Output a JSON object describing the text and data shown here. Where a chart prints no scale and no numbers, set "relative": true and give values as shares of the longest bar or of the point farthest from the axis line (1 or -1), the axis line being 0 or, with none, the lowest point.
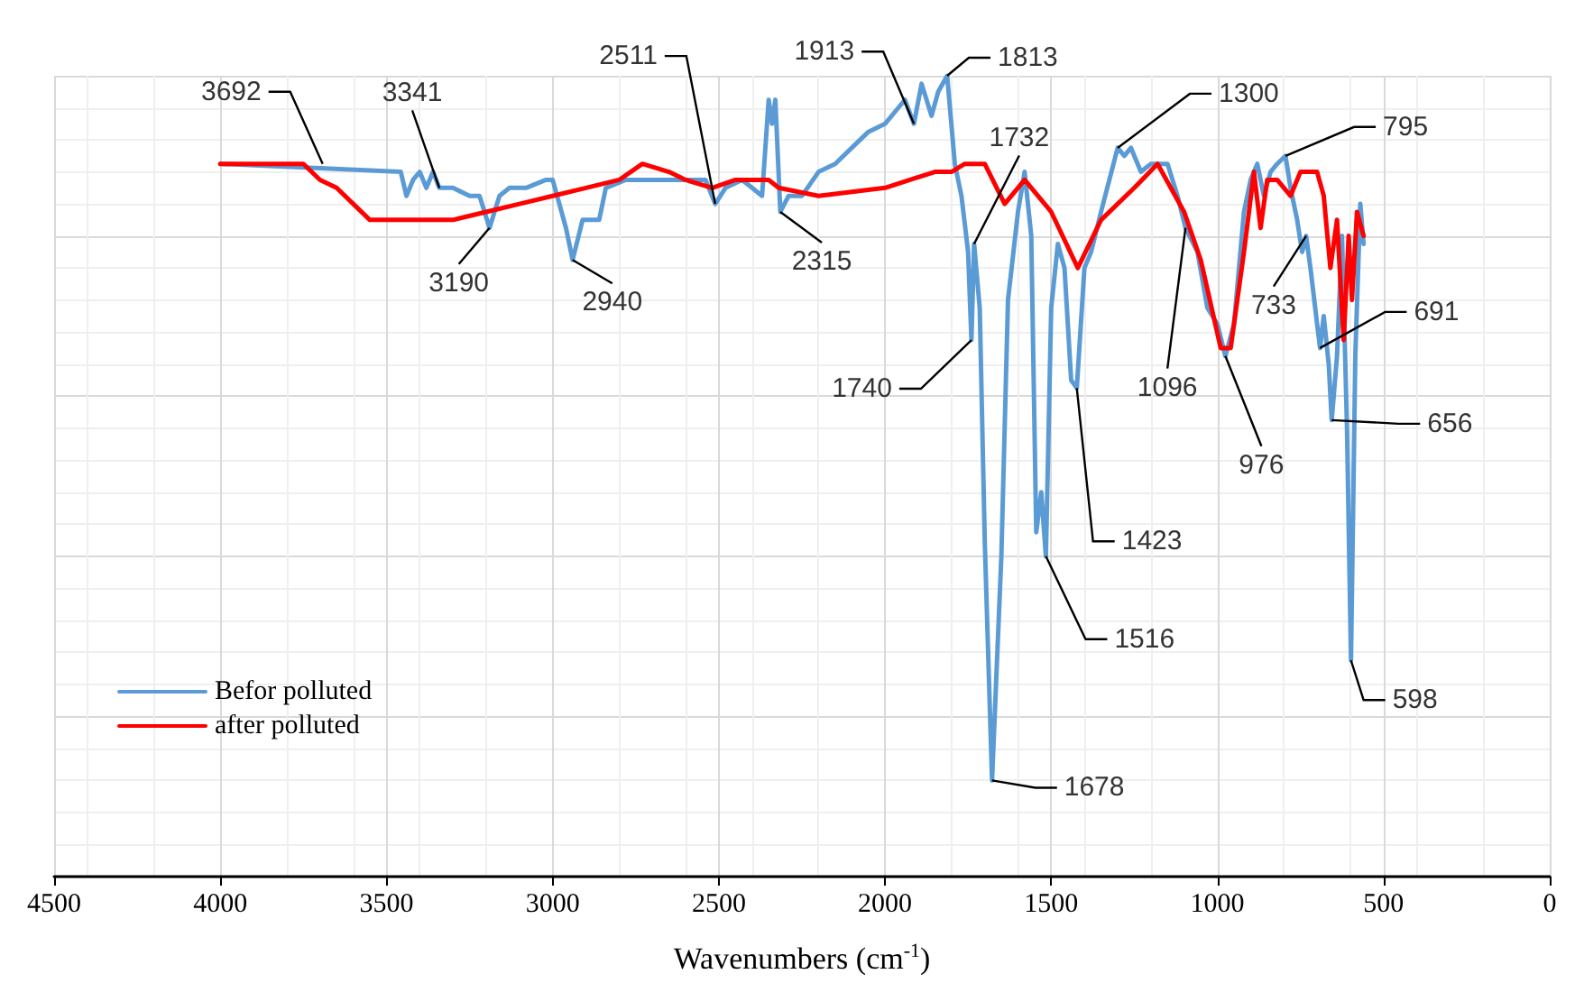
{
  "chart_data": {
    "type": "line",
    "xlabel": "Wavenumbers (cm$^{-1}$)",
    "relative": true,
    "xlim": [
      4500,
      0
    ],
    "xticks": [
      4500,
      4000,
      3500,
      3000,
      2500,
      2000,
      1500,
      1000,
      500,
      0
    ],
    "grid": true,
    "legend": "bottom left",
    "line_style": "solid",
    "series": [
      {
        "name": "Befor polluted",
        "color": "#5b9bd5",
        "x": [
          4000,
          3457,
          3440,
          3420,
          3400,
          3380,
          3360,
          3341,
          3300,
          3250,
          3220,
          3190,
          3160,
          3130,
          3080,
          3020,
          3000,
          2960,
          2940,
          2910,
          2880,
          2860,
          2840,
          2780,
          2700,
          2600,
          2540,
          2511,
          2480,
          2430,
          2400,
          2370,
          2350,
          2340,
          2330,
          2315,
          2290,
          2250,
          2200,
          2150,
          2100,
          2050,
          2000,
          1960,
          1940,
          1913,
          1890,
          1860,
          1840,
          1813,
          1790,
          1770,
          1750,
          1740,
          1732,
          1715,
          1700,
          1678,
          1650,
          1630,
          1600,
          1580,
          1560,
          1545,
          1530,
          1516,
          1500,
          1480,
          1460,
          1440,
          1423,
          1400,
          1380,
          1350,
          1300,
          1280,
          1260,
          1230,
          1200,
          1150,
          1120,
          1096,
          1060,
          1030,
          1000,
          976,
          950,
          920,
          900,
          880,
          860,
          840,
          820,
          795,
          780,
          760,
          745,
          733,
          720,
          700,
          691,
          680,
          665,
          656,
          640,
          625,
          610,
          598,
          585,
          570,
          560
        ],
        "values": [
          0.89,
          0.88,
          0.85,
          0.87,
          0.88,
          0.86,
          0.88,
          0.86,
          0.86,
          0.85,
          0.85,
          0.81,
          0.85,
          0.86,
          0.86,
          0.87,
          0.87,
          0.81,
          0.77,
          0.82,
          0.82,
          0.82,
          0.86,
          0.87,
          0.87,
          0.87,
          0.87,
          0.84,
          0.86,
          0.87,
          0.86,
          0.85,
          0.97,
          0.94,
          0.97,
          0.83,
          0.85,
          0.85,
          0.88,
          0.89,
          0.91,
          0.93,
          0.94,
          0.96,
          0.97,
          0.94,
          0.99,
          0.95,
          0.98,
          1.0,
          0.89,
          0.85,
          0.78,
          0.67,
          0.79,
          0.71,
          0.42,
          0.12,
          0.4,
          0.72,
          0.83,
          0.88,
          0.8,
          0.43,
          0.48,
          0.4,
          0.71,
          0.79,
          0.76,
          0.62,
          0.61,
          0.76,
          0.78,
          0.83,
          0.91,
          0.9,
          0.91,
          0.88,
          0.89,
          0.89,
          0.85,
          0.81,
          0.78,
          0.71,
          0.69,
          0.65,
          0.69,
          0.83,
          0.87,
          0.89,
          0.85,
          0.88,
          0.89,
          0.9,
          0.86,
          0.82,
          0.78,
          0.8,
          0.76,
          0.69,
          0.66,
          0.7,
          0.64,
          0.57,
          0.65,
          0.8,
          0.56,
          0.27,
          0.65,
          0.84,
          0.79
        ]
      },
      {
        "name": "after polluted",
        "color": "#ff0000",
        "x": [
          4000,
          3900,
          3800,
          3750,
          3700,
          3650,
          3600,
          3550,
          3500,
          3400,
          3300,
          3200,
          3100,
          3000,
          2900,
          2800,
          2730,
          2650,
          2600,
          2520,
          2450,
          2350,
          2320,
          2200,
          2000,
          1850,
          1800,
          1760,
          1700,
          1640,
          1580,
          1500,
          1420,
          1350,
          1250,
          1180,
          1100,
          1050,
          990,
          960,
          920,
          890,
          870,
          850,
          820,
          780,
          750,
          700,
          680,
          660,
          640,
          620,
          605,
          595,
          580,
          560
        ],
        "values": [
          0.89,
          0.89,
          0.89,
          0.89,
          0.87,
          0.86,
          0.84,
          0.82,
          0.82,
          0.82,
          0.82,
          0.83,
          0.84,
          0.85,
          0.86,
          0.87,
          0.89,
          0.88,
          0.87,
          0.86,
          0.87,
          0.87,
          0.86,
          0.85,
          0.86,
          0.88,
          0.88,
          0.89,
          0.89,
          0.84,
          0.87,
          0.83,
          0.76,
          0.82,
          0.86,
          0.89,
          0.83,
          0.77,
          0.66,
          0.66,
          0.78,
          0.88,
          0.81,
          0.87,
          0.87,
          0.85,
          0.88,
          0.88,
          0.85,
          0.76,
          0.82,
          0.67,
          0.8,
          0.72,
          0.83,
          0.8
        ]
      }
    ],
    "annotations": [
      {
        "text": "3692",
        "x": 3692,
        "y": 0.89
      },
      {
        "text": "3341",
        "x": 3341,
        "y": 0.86
      },
      {
        "text": "3190",
        "x": 3190,
        "y": 0.81
      },
      {
        "text": "2940",
        "x": 2940,
        "y": 0.77
      },
      {
        "text": "2511",
        "x": 2511,
        "y": 0.84
      },
      {
        "text": "2315",
        "x": 2315,
        "y": 0.83
      },
      {
        "text": "1913",
        "x": 1913,
        "y": 0.94
      },
      {
        "text": "1813",
        "x": 1813,
        "y": 1.0
      },
      {
        "text": "1732",
        "x": 1732,
        "y": 0.79
      },
      {
        "text": "1740",
        "x": 1740,
        "y": 0.67
      },
      {
        "text": "1678",
        "x": 1678,
        "y": 0.12
      },
      {
        "text": "1516",
        "x": 1516,
        "y": 0.4
      },
      {
        "text": "1423",
        "x": 1423,
        "y": 0.61
      },
      {
        "text": "1300",
        "x": 1300,
        "y": 0.91
      },
      {
        "text": "1096",
        "x": 1096,
        "y": 0.81
      },
      {
        "text": "976",
        "x": 976,
        "y": 0.65
      },
      {
        "text": "795",
        "x": 795,
        "y": 0.9
      },
      {
        "text": "733",
        "x": 733,
        "y": 0.8
      },
      {
        "text": "691",
        "x": 691,
        "y": 0.66
      },
      {
        "text": "656",
        "x": 656,
        "y": 0.57
      },
      {
        "text": "598",
        "x": 598,
        "y": 0.27
      }
    ]
  }
}
